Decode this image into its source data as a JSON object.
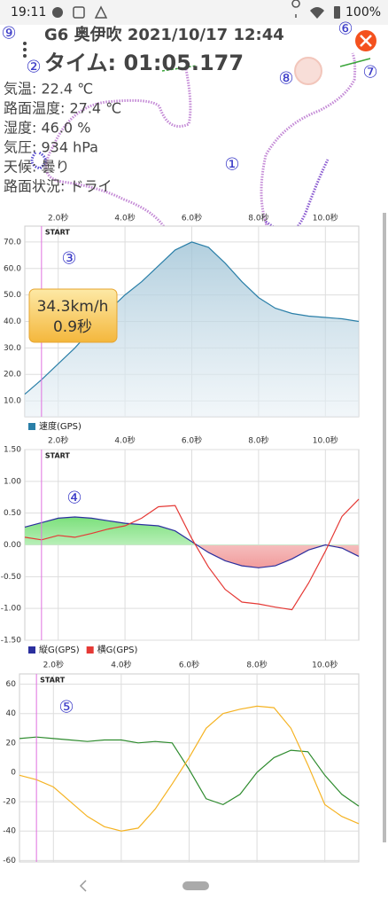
{
  "status_bar": {
    "time": "19:11",
    "battery": "100%"
  },
  "header": {
    "title": "G6 奥伊吹 2021/10/17 12:44",
    "lap_time": "タイム: 01:05.177"
  },
  "info": [
    "気温: 22.4 ℃",
    "路面温度: 27.4 ℃",
    "湿度: 46.0 %",
    "気圧: 934 hPa",
    "天候: 曇り",
    "路面状況: ドライ"
  ],
  "markers": [
    "①",
    "②",
    "③",
    "④",
    "⑤",
    "⑥",
    "⑦",
    "⑧",
    "⑨"
  ],
  "chart_data": [
    {
      "type": "area",
      "start_label": "START",
      "start_x": 1.5,
      "tooltip": [
        "34.3km/h",
        "0.9秒"
      ],
      "xlim": [
        1.0,
        11.0
      ],
      "xticks": [
        {
          "value": 2,
          "label": "2.0秒"
        },
        {
          "value": 4,
          "label": "4.0秒"
        },
        {
          "value": 6,
          "label": "6.0秒"
        },
        {
          "value": 8,
          "label": "8.0秒"
        },
        {
          "value": 10,
          "label": "10.0秒"
        }
      ],
      "ylim": [
        4,
        76
      ],
      "yticks": [
        {
          "value": 10,
          "label": "10.0"
        },
        {
          "value": 20,
          "label": "20.0"
        },
        {
          "value": 30,
          "label": "30.0"
        },
        {
          "value": 40,
          "label": "40.0"
        },
        {
          "value": 50,
          "label": "50.0"
        },
        {
          "value": 60,
          "label": "60.0"
        },
        {
          "value": 70,
          "label": "70.0"
        }
      ],
      "grid": true,
      "x": [
        1,
        1.5,
        2,
        2.5,
        3,
        3.5,
        4,
        4.5,
        5,
        5.5,
        6,
        6.5,
        7,
        7.5,
        8,
        8.5,
        9,
        9.5,
        10,
        10.5,
        11
      ],
      "series": [
        {
          "name": "速度(GPS)",
          "color": "#2a7fa8",
          "values": [
            12.5,
            18,
            24,
            30,
            37,
            44,
            50,
            55,
            61,
            67,
            70,
            68,
            62,
            55,
            49,
            45,
            43,
            42,
            41.5,
            41,
            40
          ]
        }
      ]
    },
    {
      "type": "line",
      "start_label": "START",
      "start_x": 1.5,
      "xlim": [
        1.0,
        11.0
      ],
      "xticks": [
        {
          "value": 2,
          "label": "2.0秒"
        },
        {
          "value": 4,
          "label": "4.0秒"
        },
        {
          "value": 6,
          "label": "6.0秒"
        },
        {
          "value": 8,
          "label": "8.0秒"
        },
        {
          "value": 10,
          "label": "10.0秒"
        }
      ],
      "ylim": [
        -1.5,
        1.5
      ],
      "yticks": [
        {
          "value": -1.5,
          "label": "-1.50"
        },
        {
          "value": -1,
          "label": "-1.00"
        },
        {
          "value": -0.5,
          "label": "-0.50"
        },
        {
          "value": 0,
          "label": "0.00"
        },
        {
          "value": 0.5,
          "label": "0.50"
        },
        {
          "value": 1,
          "label": "1.00"
        },
        {
          "value": 1.5,
          "label": "1.50"
        }
      ],
      "grid": true,
      "x": [
        1,
        1.5,
        2,
        2.5,
        3,
        3.5,
        4,
        4.5,
        5,
        5.5,
        6,
        6.5,
        7,
        7.5,
        8,
        8.5,
        9,
        9.5,
        10,
        10.5,
        11
      ],
      "series": [
        {
          "name": "縦G(GPS)",
          "color": "#2b2f9e",
          "values": [
            0.28,
            0.35,
            0.42,
            0.44,
            0.42,
            0.38,
            0.34,
            0.32,
            0.3,
            0.22,
            0.05,
            -0.12,
            -0.25,
            -0.33,
            -0.36,
            -0.33,
            -0.22,
            -0.08,
            0.0,
            -0.05,
            -0.18
          ]
        },
        {
          "name": "横G(GPS)",
          "color": "#e53935",
          "values": [
            0.12,
            0.08,
            0.15,
            0.12,
            0.18,
            0.25,
            0.3,
            0.42,
            0.6,
            0.62,
            0.1,
            -0.35,
            -0.7,
            -0.9,
            -0.93,
            -0.98,
            -1.02,
            -0.6,
            -0.1,
            0.45,
            0.72
          ]
        }
      ]
    },
    {
      "type": "line",
      "start_label": "START",
      "start_x": 1.5,
      "xlim": [
        1.0,
        11.0
      ],
      "xticks": [
        {
          "value": 2,
          "label": "2.0秒"
        },
        {
          "value": 4,
          "label": "4.0秒"
        },
        {
          "value": 6,
          "label": "6.0秒"
        },
        {
          "value": 8,
          "label": "8.0秒"
        },
        {
          "value": 10,
          "label": "10.0秒"
        }
      ],
      "ylim": [
        -61,
        67
      ],
      "yticks": [
        -60,
        -40,
        -20,
        0,
        20,
        40,
        60
      ],
      "grid": true,
      "x": [
        1,
        1.5,
        2,
        2.5,
        3,
        3.5,
        4,
        4.5,
        5,
        5.5,
        6,
        6.5,
        7,
        7.5,
        8,
        8.5,
        9,
        9.5,
        10,
        10.5,
        11
      ],
      "series": [
        {
          "color": "#2e8b2e",
          "values": [
            23,
            24,
            23,
            22,
            21,
            22,
            22,
            20,
            21,
            20,
            2,
            -18,
            -22,
            -15,
            0,
            10,
            15,
            14,
            -2,
            -15,
            -23
          ]
        },
        {
          "color": "#f5b323",
          "values": [
            -2,
            -5,
            -10,
            -20,
            -30,
            -37,
            -40,
            -38,
            -25,
            -8,
            10,
            30,
            40,
            43,
            45,
            44,
            30,
            5,
            -22,
            -30,
            -35
          ]
        }
      ]
    }
  ]
}
